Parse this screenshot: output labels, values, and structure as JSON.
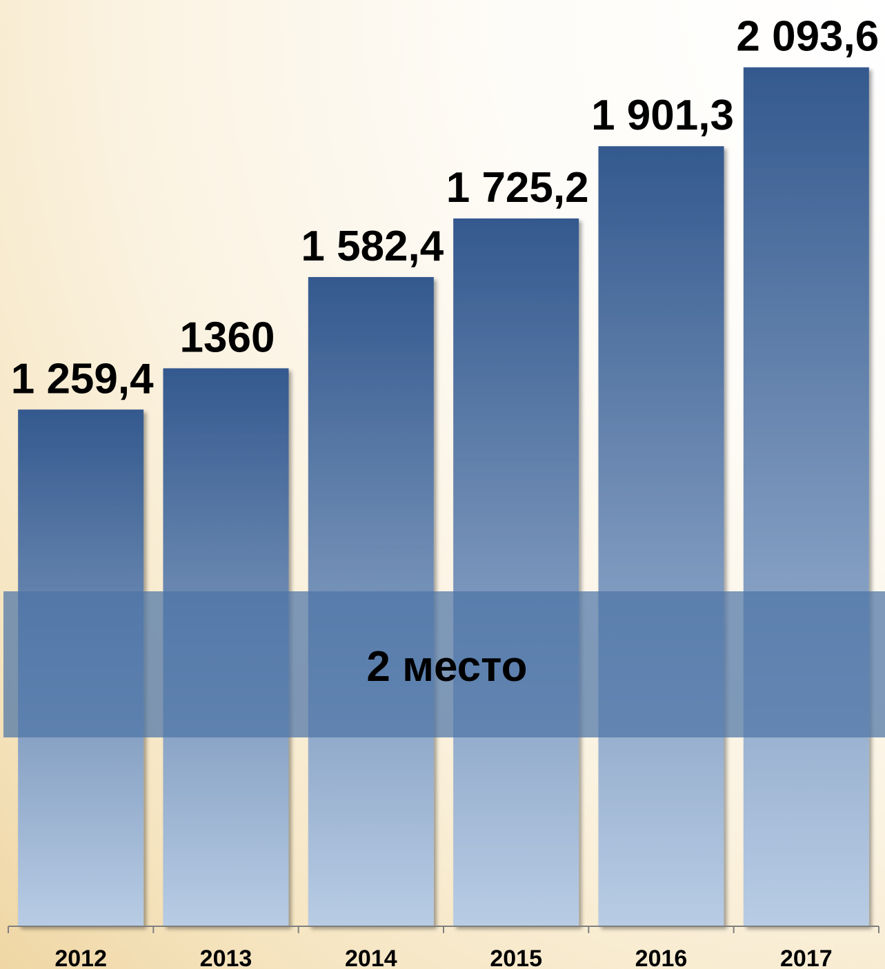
{
  "chart_data": {
    "type": "bar",
    "categories": [
      "2012",
      "2013",
      "2014",
      "2015",
      "2016",
      "2017"
    ],
    "values": [
      1259.4,
      1360,
      1582.4,
      1725.2,
      1901.3,
      2093.6
    ],
    "value_labels": [
      "1 259,4",
      "1360",
      "1 582,4",
      "1 725,2",
      "1 901,3",
      "2 093,6"
    ],
    "title": "",
    "xlabel": "",
    "ylabel": "",
    "ylim": [
      0,
      2300
    ],
    "grid": false,
    "legend": "none",
    "annotation": "2 место",
    "colors": {
      "bar_top": "#34598e",
      "bar_bottom": "#b8cce4",
      "band": "#4d74a6",
      "axis": "#7f7f7f"
    }
  }
}
